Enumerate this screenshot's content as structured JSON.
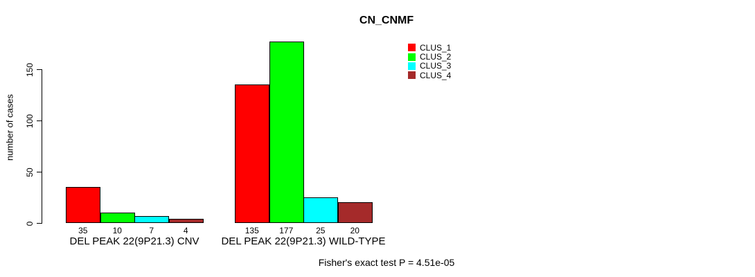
{
  "chart_data": {
    "type": "bar",
    "title": "CN_CNMF",
    "categories": [
      "DEL PEAK 22(9P21.3) CNV",
      "DEL PEAK 22(9P21.3) WILD-TYPE"
    ],
    "series": [
      {
        "name": "CLUS_1",
        "color": "#FF0000",
        "values": [
          35,
          135
        ]
      },
      {
        "name": "CLUS_2",
        "color": "#00FF00",
        "values": [
          10,
          177
        ]
      },
      {
        "name": "CLUS_3",
        "color": "#00FFFF",
        "values": [
          7,
          25
        ]
      },
      {
        "name": "CLUS_4",
        "color": "#A52A2A",
        "values": [
          4,
          20
        ]
      }
    ],
    "ylabel": "number of cases",
    "xlabel": "",
    "yticks": [
      0,
      50,
      100,
      150
    ],
    "ylim": [
      0,
      185
    ],
    "grid": false,
    "legend_position": "top-right",
    "bar_border_color": "#000000",
    "bar_value_labels_shown": true,
    "annotation": "Fisher's exact test P = 4.51e-05"
  }
}
